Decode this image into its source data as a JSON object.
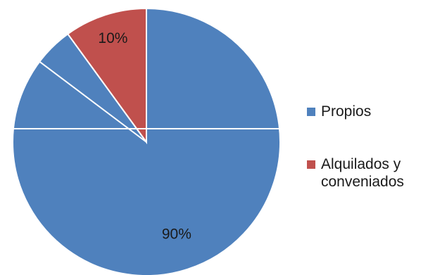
{
  "chart_data": {
    "type": "pie",
    "title": "",
    "slices": [
      {
        "name": "Propios",
        "value": 90,
        "label": "90%",
        "color": "#4f81bd"
      },
      {
        "name": "Alquilados y conveniados",
        "value": 10,
        "label": "10%",
        "color": "#c0504d"
      }
    ],
    "legend_position": "right"
  }
}
